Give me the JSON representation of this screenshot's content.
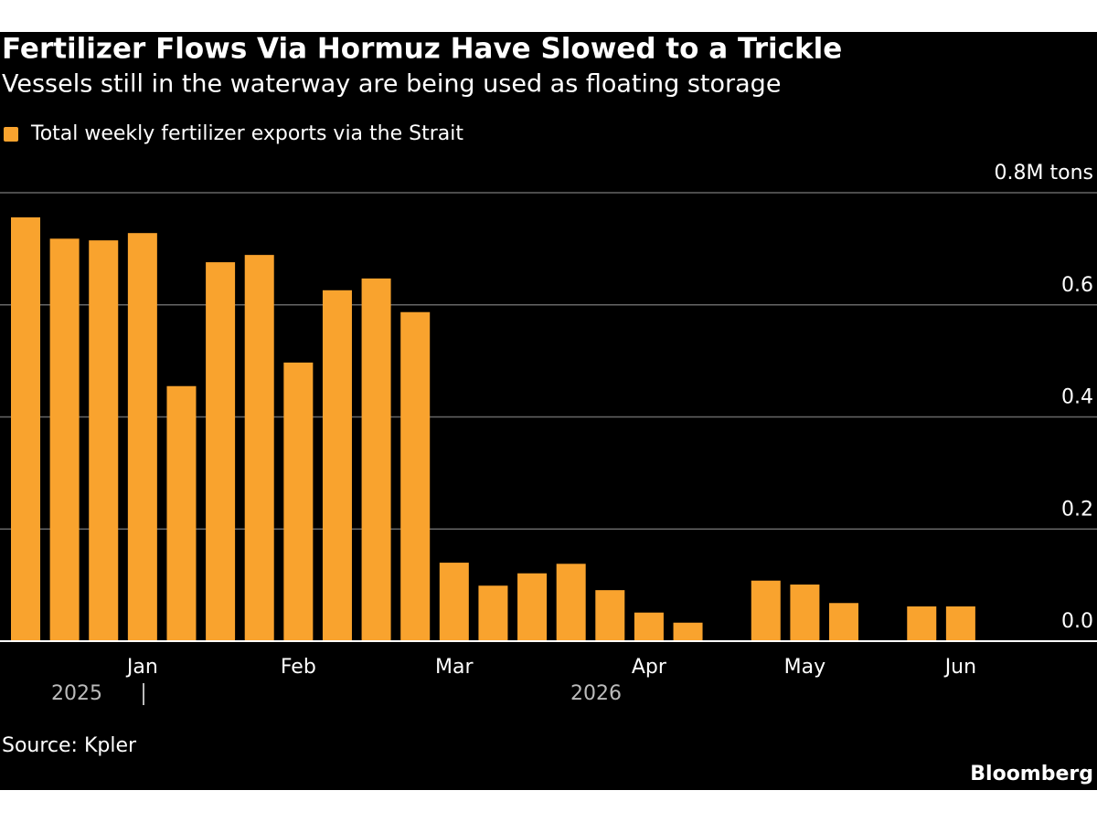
{
  "chart_data": {
    "type": "bar",
    "title": "Fertilizer Flows Via Hormuz Have Slowed to a Trickle",
    "subtitle": "Vessels still in the waterway are being used as floating storage",
    "series": [
      {
        "name": "Total weekly fertilizer exports via the Strait",
        "color": "#f9a32e",
        "values": [
          0.756,
          0.718,
          0.715,
          0.728,
          0.455,
          0.676,
          0.689,
          0.497,
          0.626,
          0.647,
          0.587,
          0.14,
          0.099,
          0.121,
          0.138,
          0.091,
          0.051,
          0.033,
          null,
          0.108,
          0.101,
          0.068,
          null,
          0.062,
          0.062
        ]
      }
    ],
    "categories": [
      null,
      null,
      null,
      "Jan",
      null,
      null,
      null,
      "Feb",
      null,
      null,
      null,
      "Mar",
      null,
      null,
      null,
      null,
      "Apr",
      null,
      null,
      null,
      "May",
      null,
      null,
      null,
      "Jun"
    ],
    "year_labels": [
      "2025",
      "2026"
    ],
    "ylim": [
      0,
      0.8
    ],
    "yticks": [
      {
        "value": 0,
        "label": "0.0"
      },
      0.2,
      0.4,
      0.6,
      {
        "value": 0.8,
        "label": "0.8M tons"
      }
    ],
    "grid": true,
    "source": "Source: Kpler",
    "brand": "Bloomberg"
  }
}
